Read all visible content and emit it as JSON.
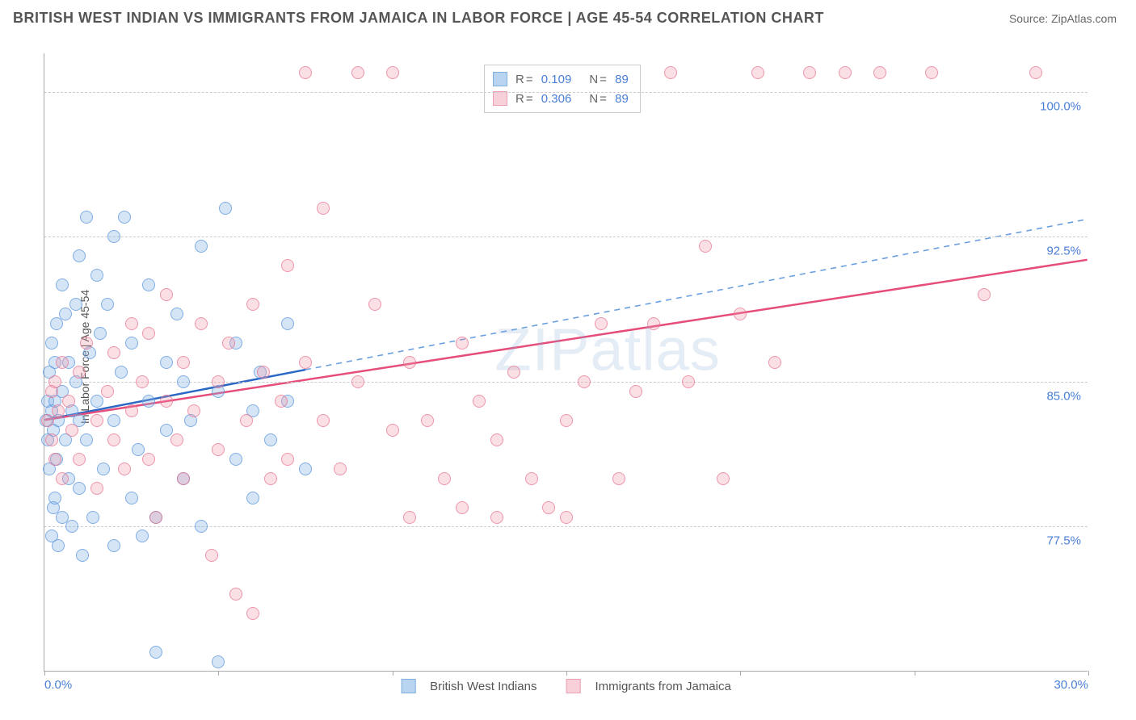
{
  "title": "BRITISH WEST INDIAN VS IMMIGRANTS FROM JAMAICA IN LABOR FORCE | AGE 45-54 CORRELATION CHART",
  "source": "Source: ZipAtlas.com",
  "watermark": "ZIPatlas",
  "ylabel": "In Labor Force | Age 45-54",
  "chart": {
    "type": "scatter",
    "xlim": [
      0,
      30
    ],
    "ylim": [
      70,
      102
    ],
    "xticks": [
      0,
      5,
      10,
      15,
      20,
      25,
      30
    ],
    "xtick_labels": {
      "0": "0.0%",
      "30": "30.0%"
    },
    "yticks": [
      77.5,
      85.0,
      92.5,
      100.0
    ],
    "ytick_labels": [
      "77.5%",
      "85.0%",
      "92.5%",
      "100.0%"
    ],
    "grid_color": "#cccccc",
    "background": "#ffffff",
    "axis_color": "#aaaaaa",
    "tick_label_color": "#4a7fd6",
    "marker_size": 16,
    "series": [
      {
        "name": "British West Indians",
        "color_fill": "rgba(135,180,230,0.35)",
        "color_stroke": "rgba(90,150,220,0.7)",
        "swatch_fill": "#b8d4f0",
        "swatch_border": "#7fb0e0",
        "R": 0.109,
        "N": 89,
        "trend": {
          "x1": 0,
          "y1": 83.0,
          "x2": 7.5,
          "y2": 85.6,
          "ext_x2": 30,
          "ext_y2": 93.4,
          "solid_color": "#2b68c5",
          "dash_color": "#6a9fe0",
          "width": 2.5
        },
        "points": [
          [
            0.05,
            83
          ],
          [
            0.1,
            82
          ],
          [
            0.1,
            84
          ],
          [
            0.15,
            85.5
          ],
          [
            0.15,
            80.5
          ],
          [
            0.2,
            83.5
          ],
          [
            0.2,
            77
          ],
          [
            0.2,
            87
          ],
          [
            0.25,
            82.5
          ],
          [
            0.25,
            78.5
          ],
          [
            0.3,
            84
          ],
          [
            0.3,
            79
          ],
          [
            0.3,
            86
          ],
          [
            0.35,
            88
          ],
          [
            0.35,
            81
          ],
          [
            0.4,
            76.5
          ],
          [
            0.4,
            83
          ],
          [
            0.5,
            90
          ],
          [
            0.5,
            78
          ],
          [
            0.5,
            84.5
          ],
          [
            0.6,
            82
          ],
          [
            0.6,
            88.5
          ],
          [
            0.7,
            80
          ],
          [
            0.7,
            86
          ],
          [
            0.8,
            83.5
          ],
          [
            0.8,
            77.5
          ],
          [
            0.9,
            85
          ],
          [
            0.9,
            89
          ],
          [
            1.0,
            91.5
          ],
          [
            1.0,
            79.5
          ],
          [
            1.0,
            83
          ],
          [
            1.1,
            76
          ],
          [
            1.2,
            93.5
          ],
          [
            1.2,
            82
          ],
          [
            1.3,
            86.5
          ],
          [
            1.4,
            78
          ],
          [
            1.5,
            90.5
          ],
          [
            1.5,
            84
          ],
          [
            1.6,
            87.5
          ],
          [
            1.7,
            80.5
          ],
          [
            1.8,
            89
          ],
          [
            2.0,
            92.5
          ],
          [
            2.0,
            76.5
          ],
          [
            2.0,
            83
          ],
          [
            2.2,
            85.5
          ],
          [
            2.3,
            93.5
          ],
          [
            2.5,
            79
          ],
          [
            2.5,
            87
          ],
          [
            2.7,
            81.5
          ],
          [
            2.8,
            77
          ],
          [
            3.0,
            84
          ],
          [
            3.0,
            90
          ],
          [
            3.2,
            78
          ],
          [
            3.2,
            71
          ],
          [
            3.5,
            86
          ],
          [
            3.5,
            82.5
          ],
          [
            3.8,
            88.5
          ],
          [
            4.0,
            80
          ],
          [
            4.0,
            85
          ],
          [
            4.2,
            83
          ],
          [
            4.5,
            92
          ],
          [
            4.5,
            77.5
          ],
          [
            5.0,
            84.5
          ],
          [
            5.0,
            70.5
          ],
          [
            5.2,
            94
          ],
          [
            5.5,
            81
          ],
          [
            5.5,
            87
          ],
          [
            6.0,
            83.5
          ],
          [
            6.0,
            79
          ],
          [
            6.2,
            85.5
          ],
          [
            6.5,
            82
          ],
          [
            7.0,
            88
          ],
          [
            7.0,
            84
          ],
          [
            7.5,
            80.5
          ]
        ]
      },
      {
        "name": "Immigrants from Jamaica",
        "color_fill": "rgba(240,150,170,0.3)",
        "color_stroke": "rgba(230,110,140,0.65)",
        "swatch_fill": "#f8d0da",
        "swatch_border": "#ec9fb5",
        "R": 0.306,
        "N": 89,
        "trend": {
          "x1": 0,
          "y1": 83.0,
          "x2": 30,
          "y2": 91.3,
          "solid_color": "#e54d7a",
          "width": 2.5
        },
        "points": [
          [
            0.1,
            83
          ],
          [
            0.2,
            82
          ],
          [
            0.2,
            84.5
          ],
          [
            0.3,
            81
          ],
          [
            0.3,
            85
          ],
          [
            0.4,
            83.5
          ],
          [
            0.5,
            80
          ],
          [
            0.5,
            86
          ],
          [
            0.7,
            84
          ],
          [
            0.8,
            82.5
          ],
          [
            1.0,
            85.5
          ],
          [
            1.0,
            81
          ],
          [
            1.2,
            87
          ],
          [
            1.5,
            83
          ],
          [
            1.5,
            79.5
          ],
          [
            1.8,
            84.5
          ],
          [
            2.0,
            82
          ],
          [
            2.0,
            86.5
          ],
          [
            2.3,
            80.5
          ],
          [
            2.5,
            88
          ],
          [
            2.5,
            83.5
          ],
          [
            2.8,
            85
          ],
          [
            3.0,
            81
          ],
          [
            3.0,
            87.5
          ],
          [
            3.2,
            78
          ],
          [
            3.5,
            84
          ],
          [
            3.5,
            89.5
          ],
          [
            3.8,
            82
          ],
          [
            4.0,
            86
          ],
          [
            4.0,
            80
          ],
          [
            4.3,
            83.5
          ],
          [
            4.5,
            88
          ],
          [
            4.8,
            76
          ],
          [
            5.0,
            85
          ],
          [
            5.0,
            81.5
          ],
          [
            5.3,
            87
          ],
          [
            5.5,
            74
          ],
          [
            5.8,
            83
          ],
          [
            6.0,
            89
          ],
          [
            6.0,
            73
          ],
          [
            6.3,
            85.5
          ],
          [
            6.5,
            80
          ],
          [
            6.8,
            84
          ],
          [
            7.0,
            91
          ],
          [
            7.0,
            81
          ],
          [
            7.5,
            86
          ],
          [
            7.5,
            101
          ],
          [
            8.0,
            83
          ],
          [
            8.0,
            94
          ],
          [
            8.5,
            80.5
          ],
          [
            9.0,
            85
          ],
          [
            9.0,
            101
          ],
          [
            9.5,
            89
          ],
          [
            10.0,
            82.5
          ],
          [
            10.0,
            101
          ],
          [
            10.5,
            86
          ],
          [
            10.5,
            78
          ],
          [
            11.0,
            83
          ],
          [
            11.5,
            80
          ],
          [
            12.0,
            87
          ],
          [
            12.0,
            78.5
          ],
          [
            12.5,
            84
          ],
          [
            13.0,
            82
          ],
          [
            13.0,
            78
          ],
          [
            13.5,
            85.5
          ],
          [
            14.0,
            80
          ],
          [
            14.5,
            78.5
          ],
          [
            15.0,
            83
          ],
          [
            15.0,
            78
          ],
          [
            15.5,
            85
          ],
          [
            16.0,
            88
          ],
          [
            16.5,
            80
          ],
          [
            17.0,
            84.5
          ],
          [
            17.5,
            88
          ],
          [
            18.0,
            101
          ],
          [
            18.5,
            85
          ],
          [
            19.0,
            92
          ],
          [
            19.5,
            80
          ],
          [
            20.0,
            88.5
          ],
          [
            20.5,
            101
          ],
          [
            21.0,
            86
          ],
          [
            22.0,
            101
          ],
          [
            23.0,
            101
          ],
          [
            24.0,
            101
          ],
          [
            25.5,
            101
          ],
          [
            27.0,
            89.5
          ],
          [
            28.5,
            101
          ]
        ]
      }
    ]
  },
  "bottom_legend": [
    {
      "label": "British West Indians",
      "fill": "#b8d4f0",
      "border": "#7fb0e0"
    },
    {
      "label": "Immigrants from Jamaica",
      "fill": "#f8d0da",
      "border": "#ec9fb5"
    }
  ]
}
